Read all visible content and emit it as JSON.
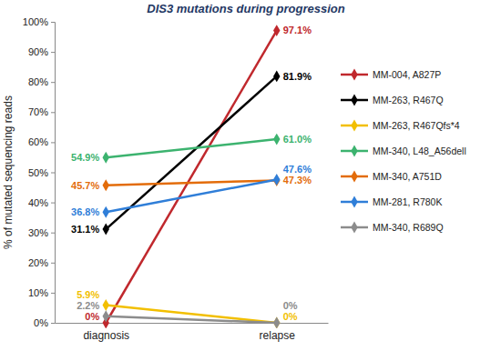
{
  "chart_data": {
    "type": "line",
    "title": "DIS3 mutations during progression",
    "y_label": "% of mutated sequencing reads",
    "categories": [
      "diagnosis",
      "relapse"
    ],
    "ylim": [
      0,
      100
    ],
    "yticks": [
      {
        "value": 0,
        "label": "0%"
      },
      {
        "value": 10,
        "label": "10%"
      },
      {
        "value": 20,
        "label": "20%"
      },
      {
        "value": 30,
        "label": "30%"
      },
      {
        "value": 40,
        "label": "40%"
      },
      {
        "value": 50,
        "label": "50%"
      },
      {
        "value": 60,
        "label": "60%"
      },
      {
        "value": 70,
        "label": "70%"
      },
      {
        "value": 80,
        "label": "80%"
      },
      {
        "value": 90,
        "label": "90%"
      },
      {
        "value": 100,
        "label": "100%"
      }
    ],
    "grid": false,
    "legend": "right",
    "marker": "diamond",
    "data_labels": true,
    "series": [
      {
        "name": "MM-004, A827P",
        "color": "#c0282d",
        "values": [
          0,
          97.1
        ],
        "value_labels": [
          "0%",
          "97.1%"
        ]
      },
      {
        "name": "MM-263, R467Q",
        "color": "#000000",
        "values": [
          31.1,
          81.9
        ],
        "value_labels": [
          "31.1%",
          "81.9%"
        ]
      },
      {
        "name": "MM-263, R467Qfs*4",
        "color": "#f2bf00",
        "values": [
          5.9,
          0
        ],
        "value_labels": [
          "5.9%",
          "0%"
        ]
      },
      {
        "name": "MM-340, L48_A56dell",
        "color": "#3cb36f",
        "values": [
          54.9,
          61.0
        ],
        "value_labels": [
          "54.9%",
          "61.0%"
        ]
      },
      {
        "name": "MM-340, A751D",
        "color": "#e36c0a",
        "values": [
          45.7,
          47.3
        ],
        "value_labels": [
          "45.7%",
          "47.3%"
        ]
      },
      {
        "name": "MM-281, R780K",
        "color": "#2f7ed8",
        "values": [
          36.8,
          47.6
        ],
        "value_labels": [
          "36.8%",
          "47.6%"
        ]
      },
      {
        "name": "MM-340, R689Q",
        "color": "#8c8c8c",
        "values": [
          2.2,
          0
        ],
        "value_labels": [
          "2.2%",
          "0%"
        ]
      }
    ]
  }
}
